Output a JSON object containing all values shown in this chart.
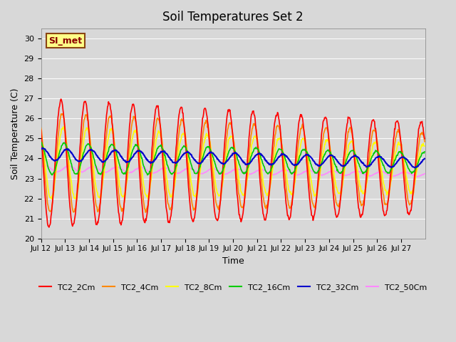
{
  "title": "Soil Temperatures Set 2",
  "xlabel": "Time",
  "ylabel": "Soil Temperature (C)",
  "ylim": [
    20.0,
    30.5
  ],
  "yticks": [
    20.0,
    21.0,
    22.0,
    23.0,
    24.0,
    25.0,
    26.0,
    27.0,
    28.0,
    29.0,
    30.0
  ],
  "fig_bg_color": "#d8d8d8",
  "plot_bg_color": "#d8d8d8",
  "annotation_text": "SI_met",
  "annotation_box_color": "#ffff88",
  "annotation_box_edge": "#8B4513",
  "series": {
    "TC2_2Cm": {
      "color": "#ff0000",
      "lw": 1.2
    },
    "TC2_4Cm": {
      "color": "#ff8800",
      "lw": 1.2
    },
    "TC2_8Cm": {
      "color": "#ffff00",
      "lw": 1.2
    },
    "TC2_16Cm": {
      "color": "#00cc00",
      "lw": 1.2
    },
    "TC2_32Cm": {
      "color": "#0000cc",
      "lw": 1.5
    },
    "TC2_50Cm": {
      "color": "#ff88ff",
      "lw": 1.2
    }
  },
  "xtick_labels": [
    "Jul 12",
    "Jul 13",
    "Jul 14",
    "Jul 15",
    "Jul 16",
    "Jul 17",
    "Jul 18",
    "Jul 19",
    "Jul 20",
    "Jul 21",
    "Jul 22",
    "Jul 23",
    "Jul 24",
    "Jul 25",
    "Jul 26",
    "Jul 27"
  ],
  "n_days": 16,
  "pts_per_day": 48
}
